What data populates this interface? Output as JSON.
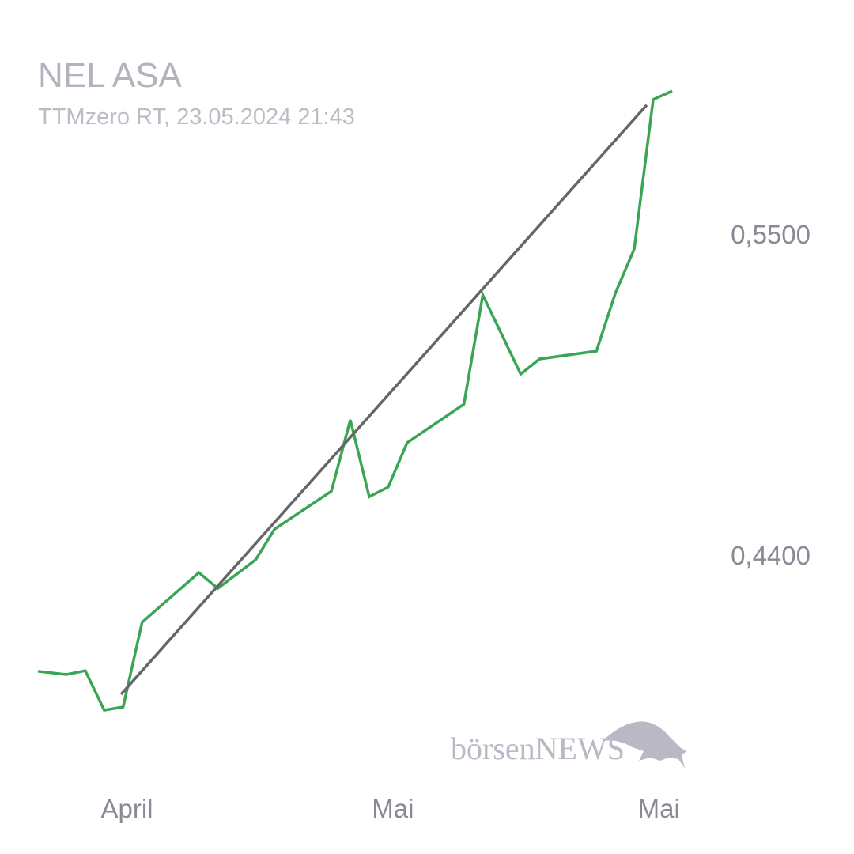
{
  "chart_data": {
    "type": "line",
    "title": "NEL ASA",
    "subtitle": "TTMzero RT, 23.05.2024 21:43",
    "watermark": "börsenNEWS",
    "xlim": [
      0,
      33.5
    ],
    "xticks": [
      {
        "value": 4.7,
        "label": "April"
      },
      {
        "value": 18.75,
        "label": "Mai"
      },
      {
        "value": 32.8,
        "label": "Mai"
      }
    ],
    "ylim": [
      0.38,
      0.61
    ],
    "yticks": [
      {
        "value": 0.55,
        "label": "0,5500"
      },
      {
        "value": 0.44,
        "label": "0,4400"
      }
    ],
    "series": [
      {
        "color": "#3aa655",
        "x": [
          0,
          1.5,
          2.5,
          3.5,
          4.5,
          5.5,
          8.5,
          9.5,
          11.5,
          12.5,
          15.5,
          16.5,
          17.5,
          18.5,
          19.5,
          22.5,
          23.5,
          24.5,
          25.5,
          26.5,
          29.5,
          30.5,
          31.5,
          32.5,
          33.5
        ],
        "values": [
          0.4002,
          0.3991,
          0.4004,
          0.3869,
          0.388,
          0.417,
          0.434,
          0.4286,
          0.4384,
          0.4489,
          0.4619,
          0.4863,
          0.46,
          0.4633,
          0.4785,
          0.4917,
          0.5291,
          0.5156,
          0.502,
          0.5072,
          0.5099,
          0.5297,
          0.5449,
          0.5961,
          0.599
        ]
      },
      {
        "color": "#666666",
        "x": [
          4.39,
          32.16
        ],
        "values": [
          0.3923,
          0.5942
        ]
      }
    ]
  }
}
